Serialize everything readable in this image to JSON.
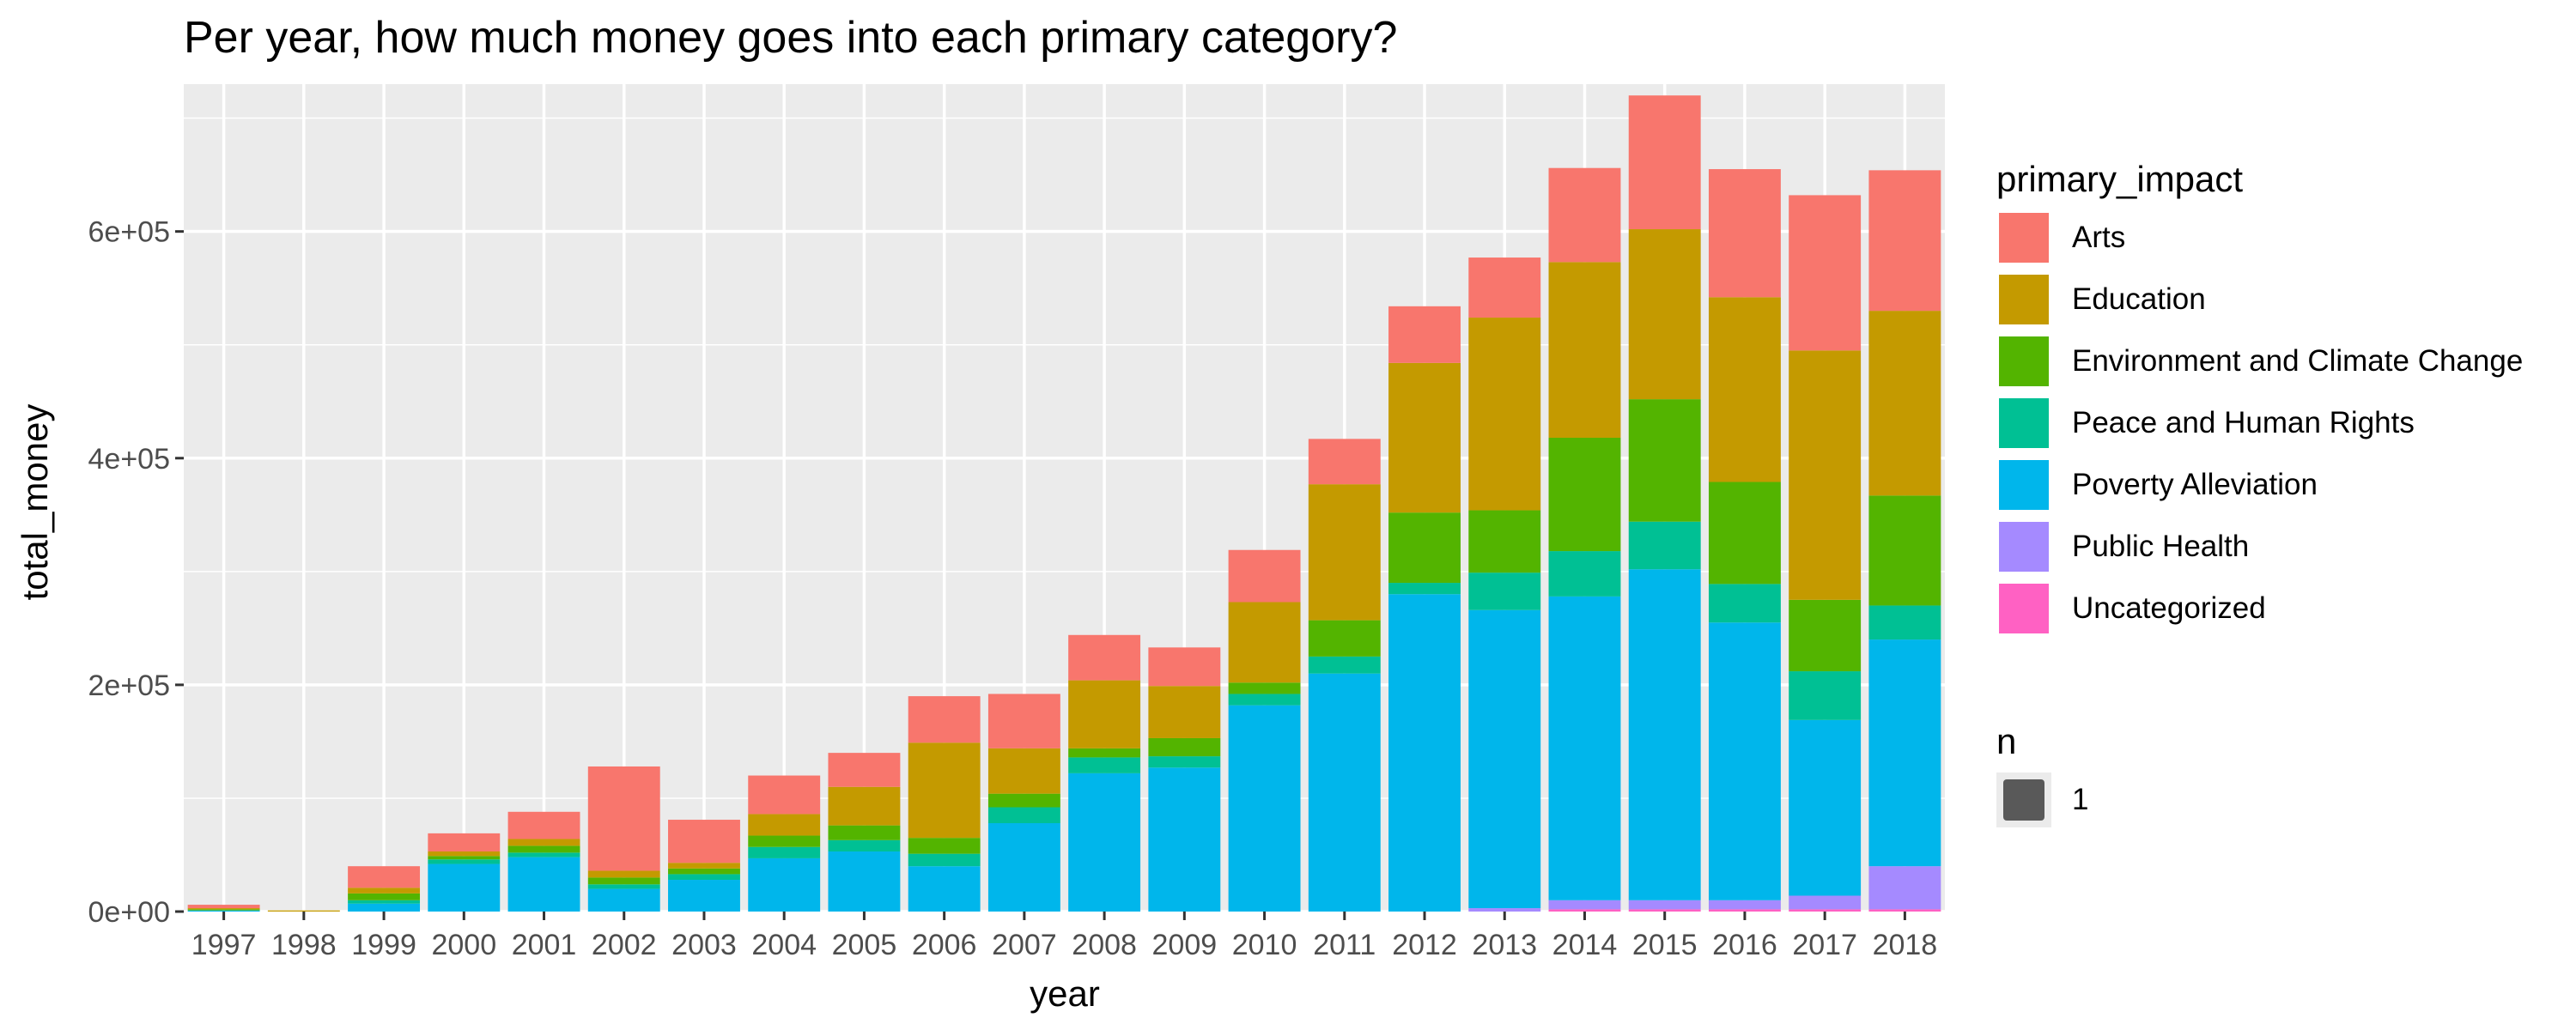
{
  "chart_data": {
    "type": "bar",
    "stacked": true,
    "title": "Per year, how much money goes into each primary category?",
    "xlabel": "year",
    "ylabel": "total_money",
    "ylim": [
      0,
      730000
    ],
    "yticks": [
      0,
      200000,
      400000,
      600000
    ],
    "ytick_labels": [
      "0e+00",
      "2e+05",
      "4e+05",
      "6e+05"
    ],
    "grid": true,
    "legend_position": "right",
    "legend_title": "primary_impact",
    "size_legend": {
      "title": "n",
      "label": "1"
    },
    "categories": [
      "1997",
      "1998",
      "1999",
      "2000",
      "2001",
      "2002",
      "2003",
      "2004",
      "2005",
      "2006",
      "2007",
      "2008",
      "2009",
      "2010",
      "2011",
      "2012",
      "2013",
      "2014",
      "2015",
      "2016",
      "2017",
      "2018"
    ],
    "series": [
      {
        "name": "Uncategorized",
        "color": "#FF61C3",
        "values": [
          0,
          0,
          0,
          0,
          0,
          0,
          0,
          0,
          0,
          0,
          0,
          0,
          0,
          0,
          0,
          0,
          0,
          2000,
          2000,
          2000,
          2000,
          2000
        ]
      },
      {
        "name": "Public Health",
        "color": "#A58AFF",
        "values": [
          0,
          0,
          0,
          0,
          0,
          0,
          0,
          0,
          0,
          0,
          0,
          0,
          0,
          0,
          0,
          0,
          3000,
          8000,
          8000,
          8000,
          12000,
          38000
        ]
      },
      {
        "name": "Poverty Alleviation",
        "color": "#00B6EB",
        "values": [
          1000,
          0,
          7000,
          42000,
          48000,
          20000,
          28000,
          47000,
          53000,
          40000,
          78000,
          122000,
          127000,
          182000,
          210000,
          280000,
          263000,
          268000,
          292000,
          245000,
          155000,
          200000
        ]
      },
      {
        "name": "Peace and Human Rights",
        "color": "#00C094",
        "values": [
          0,
          0,
          3000,
          4000,
          4000,
          4000,
          5000,
          10000,
          10000,
          11000,
          14000,
          14000,
          10000,
          10000,
          15000,
          10000,
          33000,
          40000,
          42000,
          34000,
          43000,
          30000
        ]
      },
      {
        "name": "Environment and Climate Change",
        "color": "#53B400",
        "values": [
          1000,
          0,
          6000,
          3000,
          6000,
          6000,
          5000,
          10000,
          13000,
          14000,
          12000,
          8000,
          16000,
          10000,
          32000,
          62000,
          55000,
          100000,
          108000,
          90000,
          63000,
          97000
        ]
      },
      {
        "name": "Education",
        "color": "#C49A00",
        "values": [
          1000,
          1000,
          5000,
          4000,
          6000,
          6000,
          5000,
          19000,
          34000,
          84000,
          40000,
          60000,
          46000,
          71000,
          120000,
          132000,
          170000,
          155000,
          150000,
          163000,
          220000,
          163000
        ]
      },
      {
        "name": "Arts",
        "color": "#F8766D",
        "values": [
          3000,
          0,
          19000,
          16000,
          24000,
          92000,
          38000,
          34000,
          30000,
          41000,
          48000,
          40000,
          34000,
          46000,
          40000,
          50000,
          53000,
          83000,
          118000,
          113000,
          137000,
          124000
        ]
      }
    ]
  }
}
